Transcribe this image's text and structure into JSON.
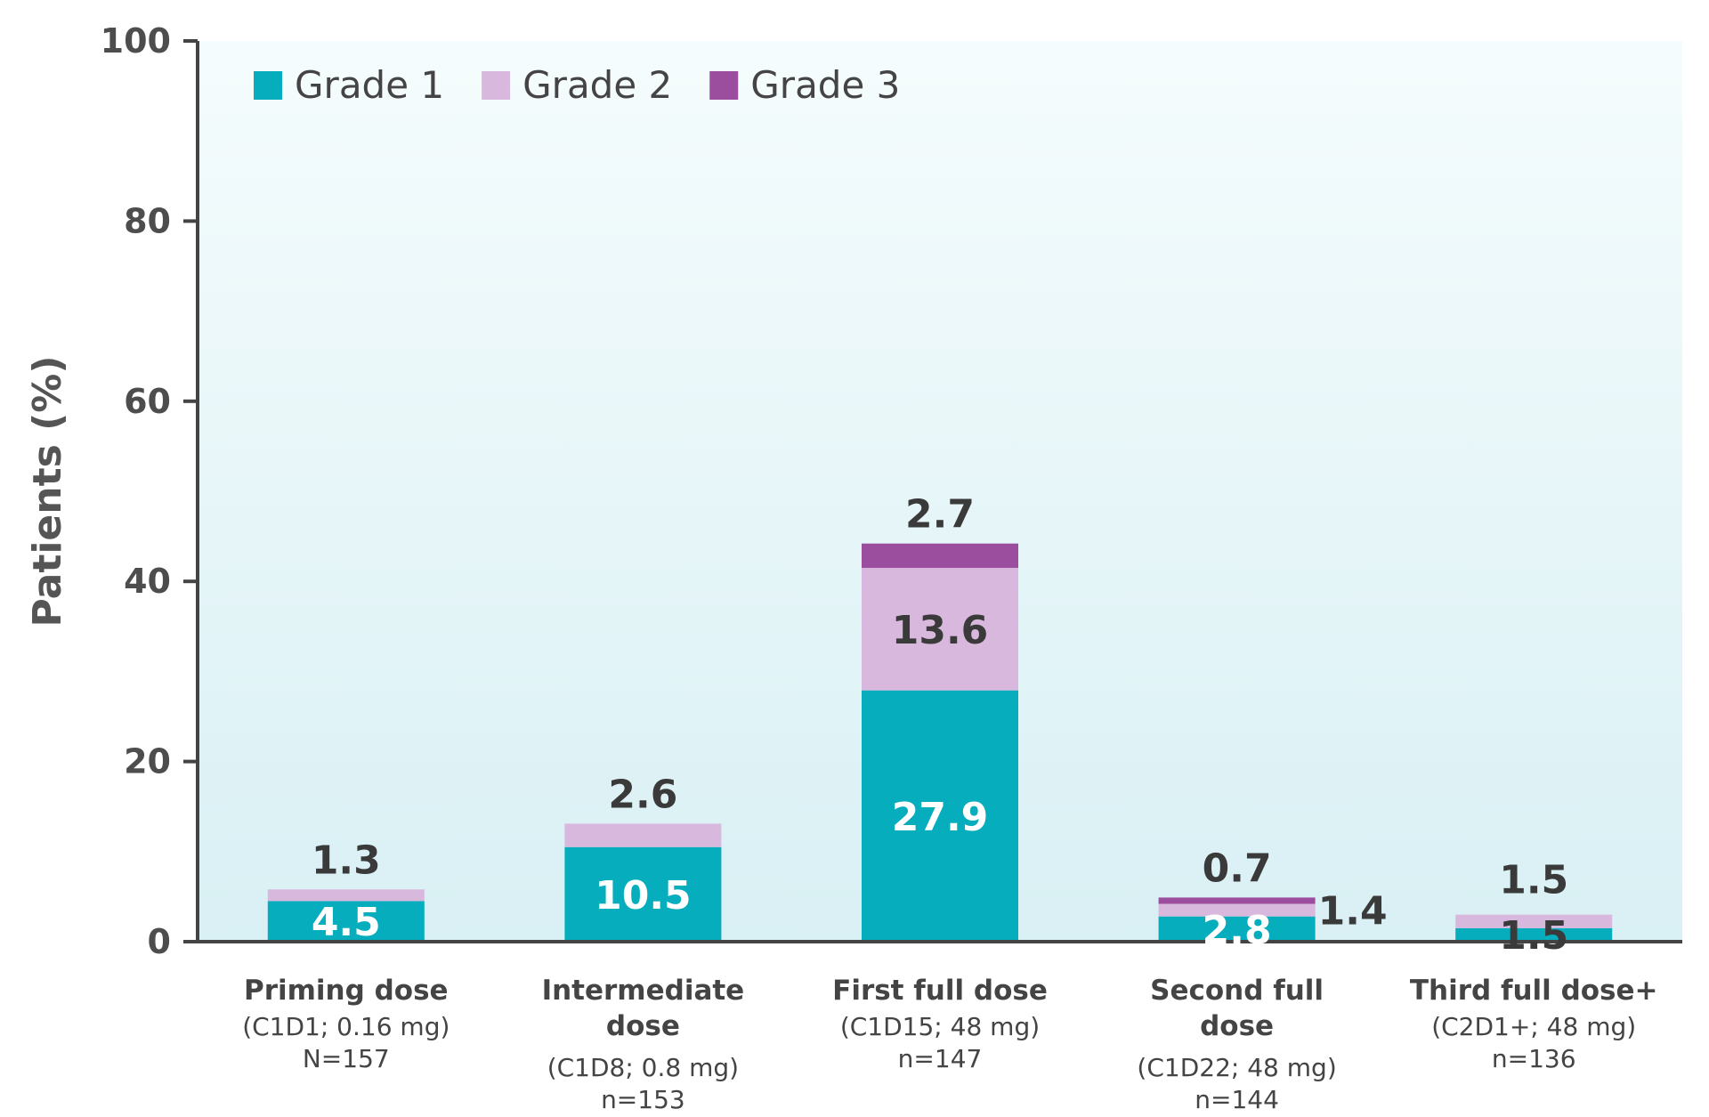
{
  "chart_data": {
    "type": "bar",
    "stacked": true,
    "ylabel": "Patients (%)",
    "ylim": [
      0,
      100
    ],
    "yticks": [
      "0",
      "20",
      "40",
      "60",
      "80",
      "100"
    ],
    "ytick_values": [
      0,
      20,
      40,
      60,
      80,
      100
    ],
    "legend_position": "top-left",
    "categories": [
      {
        "name": [
          "Priming dose"
        ],
        "sub": [
          "(C1D1; 0.16 mg)",
          "N=157"
        ]
      },
      {
        "name": [
          "Intermediate",
          "dose"
        ],
        "sub": [
          "(C1D8; 0.8 mg)",
          "n=153"
        ]
      },
      {
        "name": [
          "First full dose"
        ],
        "sub": [
          "(C1D15; 48 mg)",
          "n=147"
        ]
      },
      {
        "name": [
          "Second full",
          "dose"
        ],
        "sub": [
          "(C1D22; 48 mg)",
          "n=144"
        ]
      },
      {
        "name": [
          "Third full dose+"
        ],
        "sub": [
          "(C2D1+; 48 mg)",
          "n=136"
        ]
      }
    ],
    "series": [
      {
        "name": "Grade 1",
        "color": "#05adbd",
        "values": [
          4.5,
          10.5,
          27.9,
          2.8,
          1.5
        ],
        "labels": [
          "4.5",
          "10.5",
          "27.9",
          "2.8",
          "1.5"
        ]
      },
      {
        "name": "Grade 2",
        "color": "#d8b8dc",
        "values": [
          1.3,
          2.6,
          13.6,
          1.4,
          1.5
        ],
        "labels": [
          "1.3",
          "2.6",
          "13.6",
          "1.4",
          "1.5"
        ]
      },
      {
        "name": "Grade 3",
        "color": "#9b4d9e",
        "values": [
          0,
          0,
          2.7,
          0.7,
          0
        ],
        "labels": [
          "",
          "",
          "2.7",
          "0.7",
          ""
        ]
      }
    ]
  }
}
